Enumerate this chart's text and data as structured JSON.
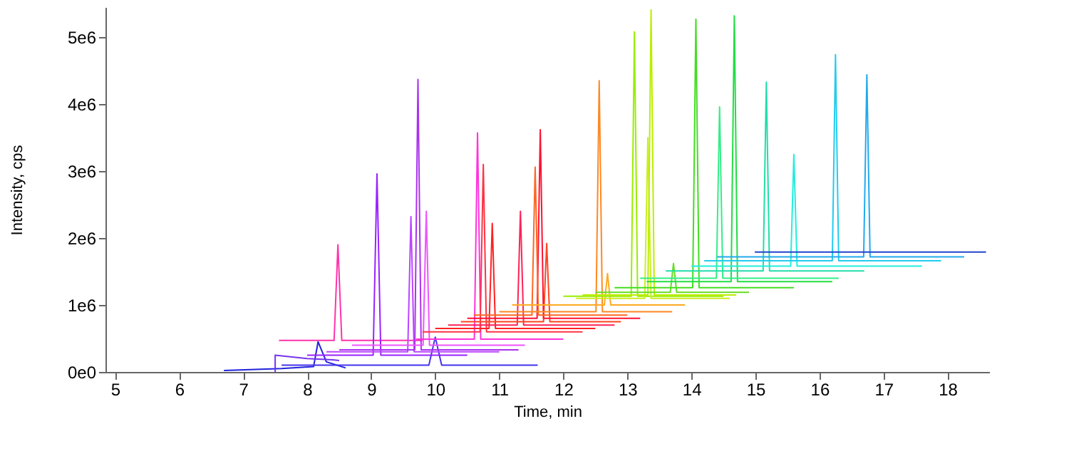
{
  "chart_data": {
    "type": "line",
    "xlabel": "Time, min",
    "ylabel": "Intensity, cps",
    "xlim": [
      4.85,
      18.65
    ],
    "ylim": [
      0,
      5450000
    ],
    "xticks": [
      5,
      6,
      7,
      8,
      9,
      10,
      11,
      12,
      13,
      14,
      15,
      16,
      17,
      18
    ],
    "yticks": [
      {
        "value": 0,
        "label": "0e0"
      },
      {
        "value": 1000000,
        "label": "1e6"
      },
      {
        "value": 2000000,
        "label": "2e6"
      },
      {
        "value": 3000000,
        "label": "3e6"
      },
      {
        "value": 4000000,
        "label": "4e6"
      },
      {
        "value": 5000000,
        "label": "5e6"
      }
    ],
    "grid": false,
    "legend": false,
    "marker": "none",
    "line_style": "solid",
    "series": [
      {
        "color": "#2222dd",
        "x": [
          6.7,
          7.6,
          8.1,
          8.17,
          8.3,
          8.6
        ],
        "values": [
          20000,
          50000,
          80000,
          450000,
          150000,
          60000
        ]
      },
      {
        "color": "#7733ee",
        "x": [
          7.5,
          7.5,
          8.0,
          8.4,
          8.5
        ],
        "values": [
          0,
          250000,
          200000,
          180000,
          170000
        ]
      },
      {
        "color": "#4433ee",
        "x": [
          7.6,
          9.9,
          10.0,
          10.1,
          11.6
        ],
        "values": [
          100000,
          100000,
          520000,
          100000,
          100000
        ]
      },
      {
        "color": "#ff33aa",
        "x": [
          7.56,
          8.42,
          8.48,
          8.54,
          9.8
        ],
        "values": [
          470000,
          470000,
          1900000,
          470000,
          470000
        ]
      },
      {
        "color": "#9922ff",
        "x": [
          8.0,
          9.03,
          9.09,
          9.15,
          10.5
        ],
        "values": [
          250000,
          250000,
          2960000,
          250000,
          250000
        ]
      },
      {
        "color": "#bb44ff",
        "x": [
          8.3,
          9.57,
          9.62,
          9.67,
          11.0
        ],
        "values": [
          300000,
          300000,
          2320000,
          300000,
          300000
        ]
      },
      {
        "color": "#aa33ee",
        "x": [
          8.5,
          9.68,
          9.73,
          9.78,
          11.3
        ],
        "values": [
          330000,
          330000,
          4370000,
          330000,
          330000
        ]
      },
      {
        "color": "#ee55ff",
        "x": [
          8.7,
          9.81,
          9.86,
          9.91,
          11.4
        ],
        "values": [
          400000,
          400000,
          2400000,
          400000,
          400000
        ]
      },
      {
        "color": "#ff33dd",
        "x": [
          9.7,
          10.61,
          10.66,
          10.71,
          12.0
        ],
        "values": [
          490000,
          490000,
          3570000,
          490000,
          490000
        ]
      },
      {
        "color": "#ff3344",
        "x": [
          9.8,
          10.7,
          10.75,
          10.8,
          12.3
        ],
        "values": [
          600000,
          600000,
          3100000,
          600000,
          600000
        ]
      },
      {
        "color": "#ff2222",
        "x": [
          10.0,
          10.84,
          10.89,
          10.94,
          12.5
        ],
        "values": [
          650000,
          650000,
          2220000,
          650000,
          650000
        ]
      },
      {
        "color": "#ff2255",
        "x": [
          10.2,
          11.28,
          11.33,
          11.38,
          12.8
        ],
        "values": [
          700000,
          700000,
          2400000,
          700000,
          700000
        ]
      },
      {
        "color": "#ff4422",
        "x": [
          10.4,
          11.69,
          11.74,
          11.79,
          12.9
        ],
        "values": [
          750000,
          750000,
          1920000,
          750000,
          750000
        ]
      },
      {
        "color": "#ff1133",
        "x": [
          10.5,
          11.59,
          11.64,
          11.69,
          13.2
        ],
        "values": [
          800000,
          800000,
          3620000,
          800000,
          800000
        ]
      },
      {
        "color": "#ff6622",
        "x": [
          10.6,
          11.51,
          11.56,
          11.61,
          13.0
        ],
        "values": [
          850000,
          850000,
          3060000,
          850000,
          850000
        ]
      },
      {
        "color": "#ff8822",
        "x": [
          11.0,
          12.51,
          12.56,
          12.61,
          13.7
        ],
        "values": [
          900000,
          900000,
          4350000,
          900000,
          900000
        ]
      },
      {
        "color": "#ffaa22",
        "x": [
          11.2,
          12.64,
          12.69,
          12.74,
          13.9
        ],
        "values": [
          1000000,
          1000000,
          1470000,
          1000000,
          1000000
        ]
      },
      {
        "color": "#99ee00",
        "x": [
          12.0,
          13.06,
          13.11,
          13.16,
          14.5
        ],
        "values": [
          1130000,
          1130000,
          5080000,
          1130000,
          1130000
        ]
      },
      {
        "color": "#ccee22",
        "x": [
          12.2,
          13.27,
          13.32,
          13.37,
          14.6
        ],
        "values": [
          1100000,
          1100000,
          3500000,
          1100000,
          1100000
        ]
      },
      {
        "color": "#bbee00",
        "x": [
          12.3,
          13.32,
          13.37,
          13.42,
          14.7
        ],
        "values": [
          1150000,
          1150000,
          5410000,
          1150000,
          1150000
        ]
      },
      {
        "color": "#66dd22",
        "x": [
          12.5,
          13.67,
          13.72,
          13.77,
          14.9
        ],
        "values": [
          1190000,
          1190000,
          1620000,
          1190000,
          1190000
        ]
      },
      {
        "color": "#44dd22",
        "x": [
          12.8,
          14.02,
          14.07,
          14.12,
          15.6
        ],
        "values": [
          1260000,
          1260000,
          5270000,
          1260000,
          1260000
        ]
      },
      {
        "color": "#22dd44",
        "x": [
          13.3,
          14.62,
          14.67,
          14.72,
          16.2
        ],
        "values": [
          1350000,
          1350000,
          5320000,
          1350000,
          1350000
        ]
      },
      {
        "color": "#33ee88",
        "x": [
          13.2,
          14.39,
          14.44,
          14.49,
          16.3
        ],
        "values": [
          1400000,
          1400000,
          3960000,
          1400000,
          1400000
        ]
      },
      {
        "color": "#22ddaa",
        "x": [
          13.6,
          15.12,
          15.17,
          15.22,
          16.7
        ],
        "values": [
          1510000,
          1510000,
          4330000,
          1510000,
          1510000
        ]
      },
      {
        "color": "#22eedd",
        "x": [
          14.0,
          15.55,
          15.6,
          15.65,
          17.6
        ],
        "values": [
          1580000,
          1580000,
          3250000,
          1580000,
          1580000
        ]
      },
      {
        "color": "#22ccee",
        "x": [
          14.2,
          16.2,
          16.25,
          16.3,
          17.9
        ],
        "values": [
          1660000,
          1660000,
          4740000,
          1660000,
          1660000
        ]
      },
      {
        "color": "#22aaee",
        "x": [
          14.4,
          16.69,
          16.74,
          16.79,
          18.26
        ],
        "values": [
          1720000,
          1720000,
          4440000,
          1720000,
          1720000
        ]
      },
      {
        "color": "#2244cc",
        "x": [
          14.99,
          18.6
        ],
        "values": [
          1790000,
          1790000
        ]
      }
    ]
  }
}
